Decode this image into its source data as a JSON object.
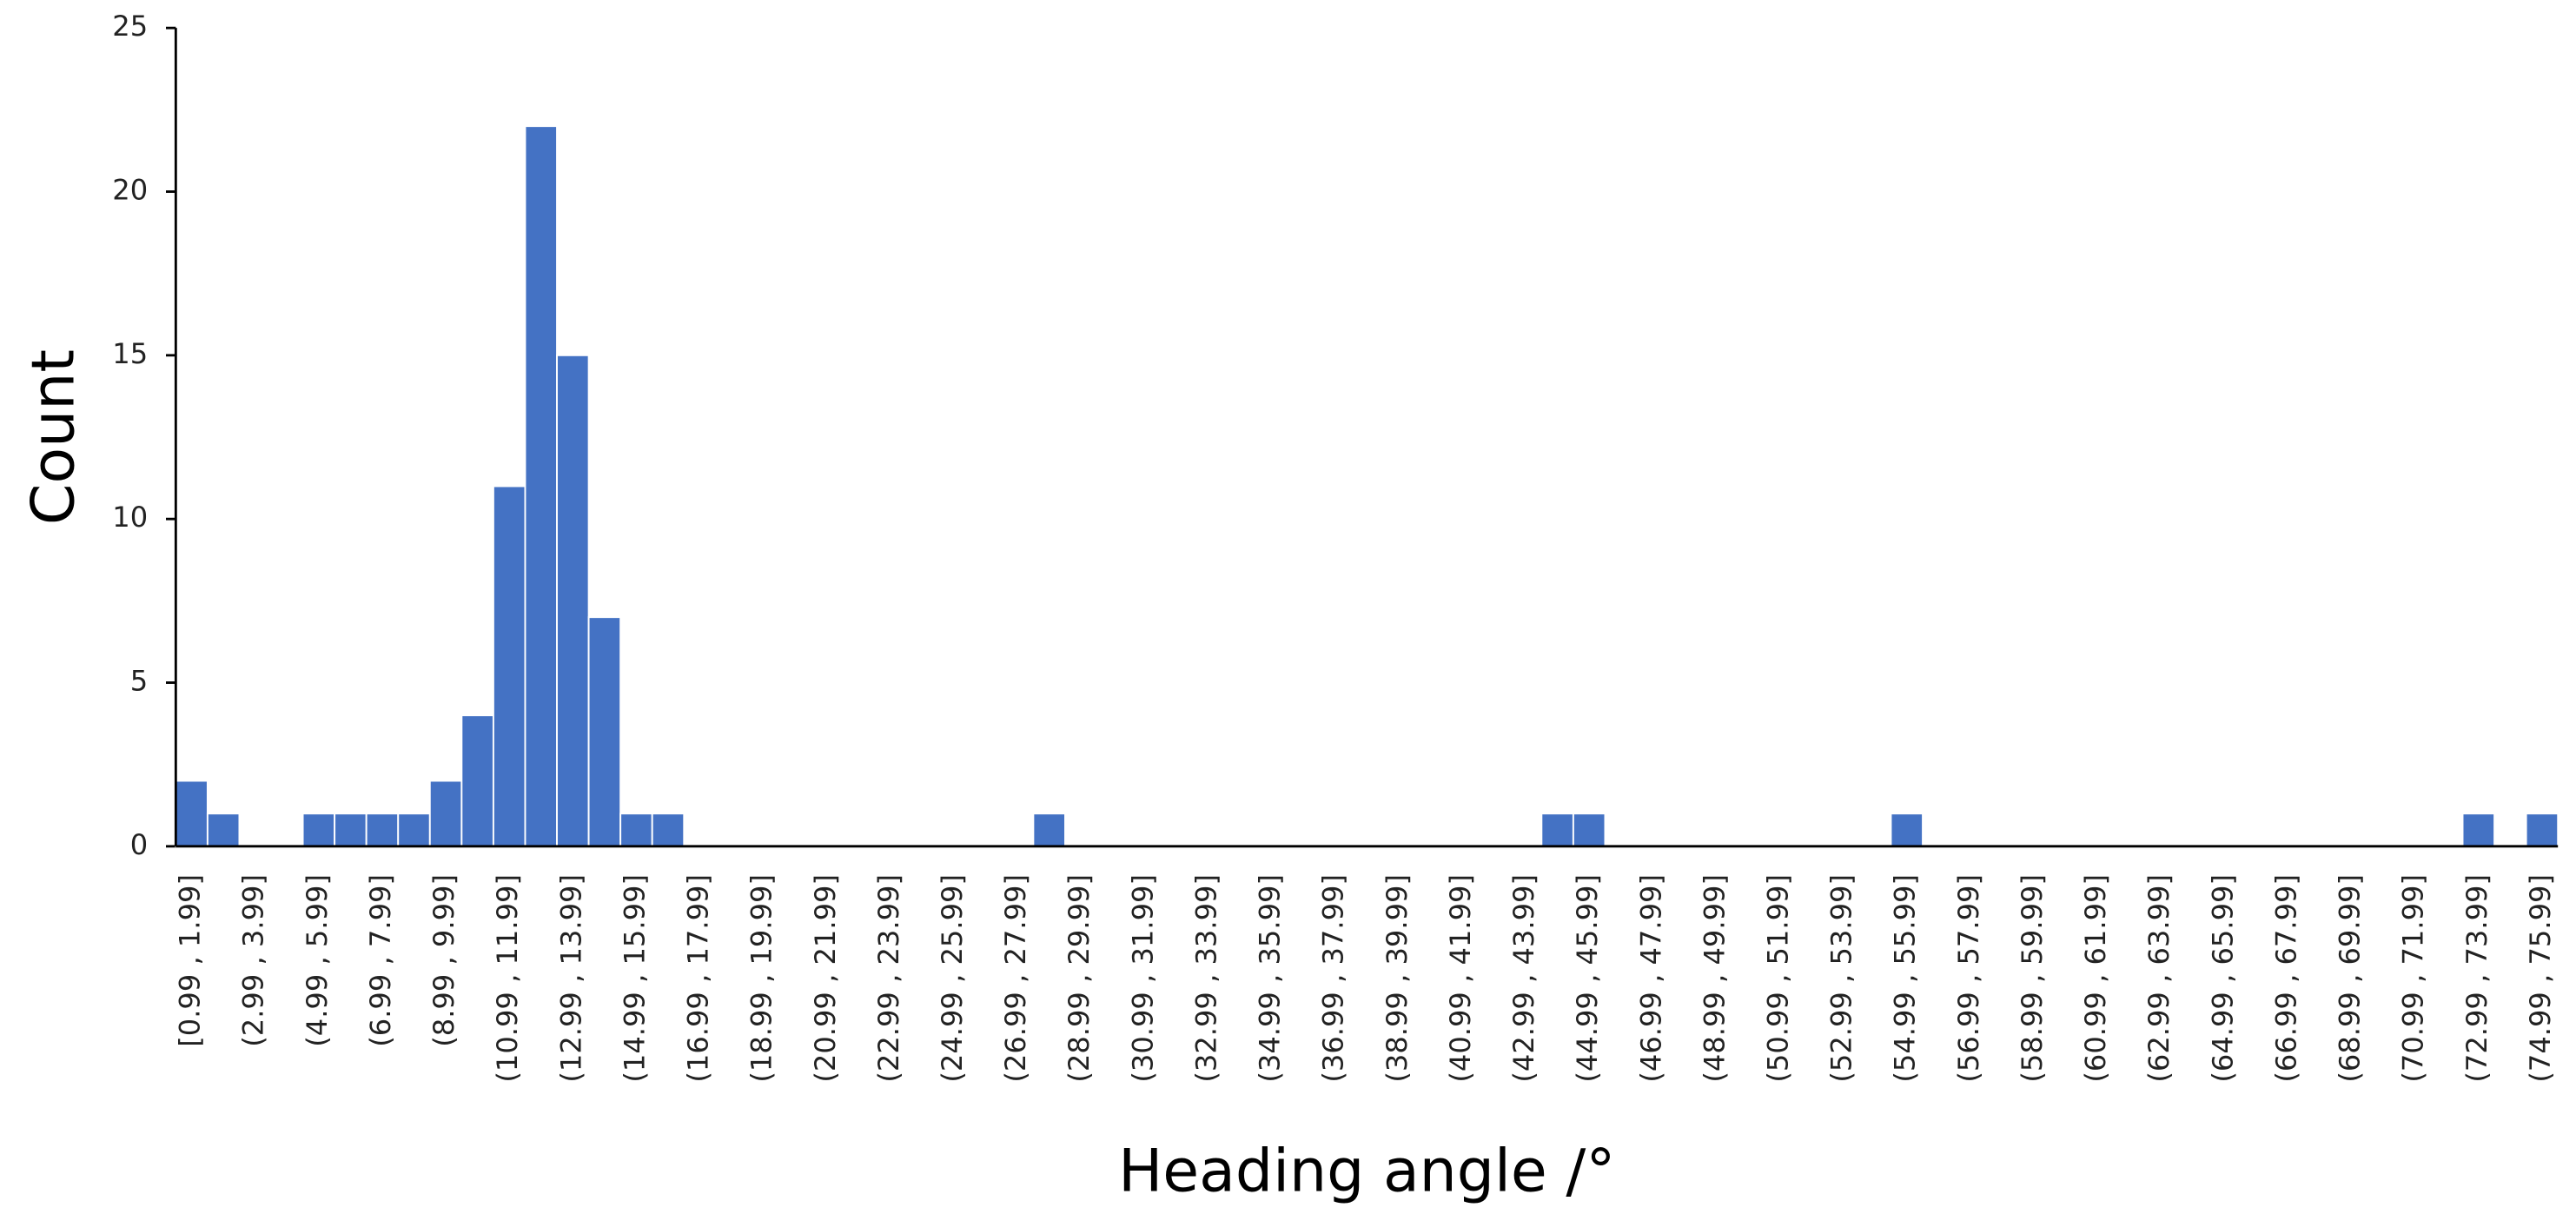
{
  "chart_data": {
    "type": "bar",
    "x_label": "Heading angle /°",
    "y_label": "Count",
    "color": "#4472c4",
    "ylim": [
      0,
      25
    ],
    "yticks": [
      0,
      5,
      10,
      15,
      20,
      25
    ],
    "categories": [
      "[0.99 , 1.99]",
      null,
      "(2.99 , 3.99]",
      null,
      "(4.99 , 5.99]",
      null,
      "(6.99 , 7.99]",
      null,
      "(8.99 , 9.99]",
      null,
      "(10.99 , 11.99]",
      null,
      "(12.99 , 13.99]",
      null,
      "(14.99 , 15.99]",
      null,
      "(16.99 , 17.99]",
      null,
      "(18.99 , 19.99]",
      null,
      "(20.99 , 21.99]",
      null,
      "(22.99 , 23.99]",
      null,
      "(24.99 , 25.99]",
      null,
      "(26.99 , 27.99]",
      null,
      "(28.99 , 29.99]",
      null,
      "(30.99 , 31.99]",
      null,
      "(32.99 , 33.99]",
      null,
      "(34.99 , 35.99]",
      null,
      "(36.99 , 37.99]",
      null,
      "(38.99 , 39.99]",
      null,
      "(40.99 , 41.99]",
      null,
      "(42.99 , 43.99]",
      null,
      "(44.99 , 45.99]",
      null,
      "(46.99 , 47.99]",
      null,
      "(48.99 , 49.99]",
      null,
      "(50.99 , 51.99]",
      null,
      "(52.99 , 53.99]",
      null,
      "(54.99 , 55.99]",
      null,
      "(56.99 , 57.99]",
      null,
      "(58.99 , 59.99]",
      null,
      "(60.99 , 61.99]",
      null,
      "(62.99 , 63.99]",
      null,
      "(64.99 , 65.99]",
      null,
      "(66.99 , 67.99]",
      null,
      "(68.99 , 69.99]",
      null,
      "(70.99 , 71.99]",
      null,
      "(72.99 , 73.99]",
      null,
      "(74.99 , 75.99]"
    ],
    "values": [
      2,
      1,
      0,
      0,
      1,
      1,
      1,
      1,
      2,
      4,
      11,
      22,
      15,
      7,
      1,
      1,
      0,
      0,
      0,
      0,
      0,
      0,
      0,
      0,
      0,
      0,
      0,
      1,
      0,
      0,
      0,
      0,
      0,
      0,
      0,
      0,
      0,
      0,
      0,
      0,
      0,
      0,
      0,
      1,
      1,
      0,
      0,
      0,
      0,
      0,
      0,
      0,
      0,
      0,
      1,
      0,
      0,
      0,
      0,
      0,
      0,
      0,
      0,
      0,
      0,
      0,
      0,
      0,
      0,
      0,
      0,
      0,
      1,
      0,
      1
    ]
  }
}
